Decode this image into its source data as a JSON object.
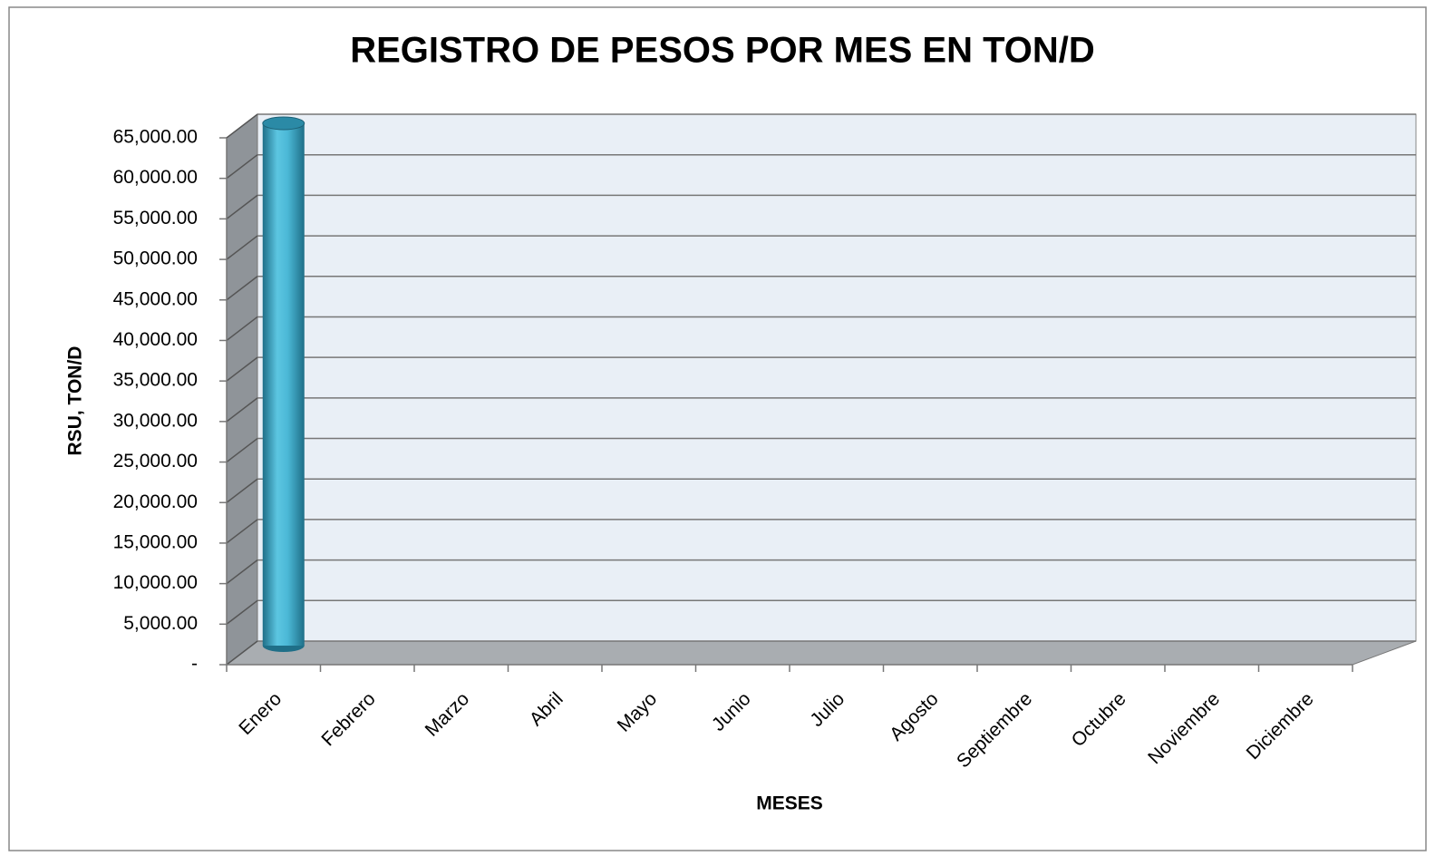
{
  "chart_data": {
    "type": "bar3d",
    "title": "REGISTRO DE PESOS POR MES EN TON/D",
    "x_label": "MESES",
    "y_label": "RSU, TON/D",
    "categories": [
      "Enero",
      "Febrero",
      "Marzo",
      "Abril",
      "Mayo",
      "Junio",
      "Julio",
      "Agosto",
      "Septiembre",
      "Octubre",
      "Noviembre",
      "Diciembre"
    ],
    "values": [
      65000,
      null,
      null,
      null,
      null,
      null,
      null,
      null,
      null,
      null,
      null,
      null
    ],
    "color": "#4bb8d6",
    "ylim": [
      0,
      65000
    ],
    "yticks": [
      {
        "value": 0,
        "label": "-"
      },
      {
        "value": 5000,
        "label": "5,000.00"
      },
      {
        "value": 10000,
        "label": "10,000.00"
      },
      {
        "value": 15000,
        "label": "15,000.00"
      },
      {
        "value": 20000,
        "label": "20,000.00"
      },
      {
        "value": 25000,
        "label": "25,000.00"
      },
      {
        "value": 30000,
        "label": "30,000.00"
      },
      {
        "value": 35000,
        "label": "35,000.00"
      },
      {
        "value": 40000,
        "label": "40,000.00"
      },
      {
        "value": 45000,
        "label": "45,000.00"
      },
      {
        "value": 50000,
        "label": "50,000.00"
      },
      {
        "value": 55000,
        "label": "55,000.00"
      },
      {
        "value": 60000,
        "label": "60,000.00"
      },
      {
        "value": 65000,
        "label": "65,000.00"
      }
    ],
    "grid": true
  }
}
